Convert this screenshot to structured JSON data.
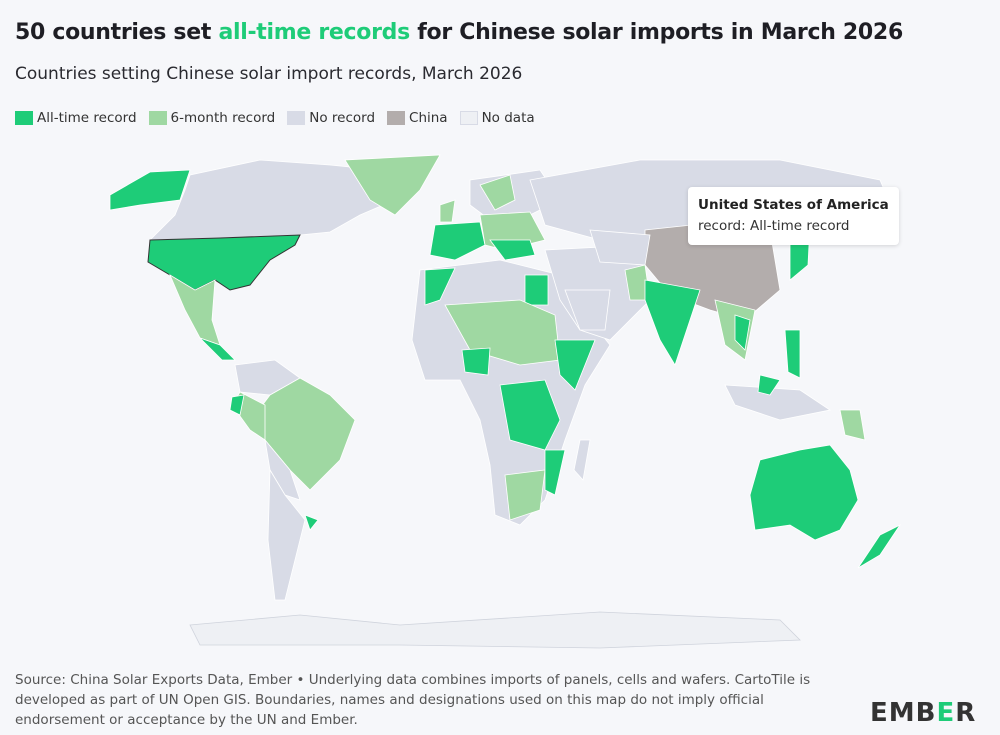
{
  "title": {
    "pre": "50 countries set ",
    "highlight": "all-time records",
    "post": " for Chinese solar imports in March 2026"
  },
  "subtitle": "Countries setting Chinese solar import records, March 2026",
  "legend": [
    {
      "label": "All-time record",
      "color": "#1ecc78"
    },
    {
      "label": "6-month record",
      "color": "#9fd8a2"
    },
    {
      "label": "No record",
      "color": "#d8dbe6"
    },
    {
      "label": "China",
      "color": "#b3adac"
    },
    {
      "label": "No data",
      "color": "#eef0f4"
    }
  ],
  "tooltip": {
    "country": "United States of America",
    "record": "record: All-time record"
  },
  "footer": "Source: China Solar Exports Data, Ember • Underlying data combines imports of panels, cells and wafers. CartoTile is developed as part of UN Open GIS. Boundaries, names and designations used on this map do not imply official endorsement or acceptance by the UN and Ember.",
  "logo": "EMBER"
}
